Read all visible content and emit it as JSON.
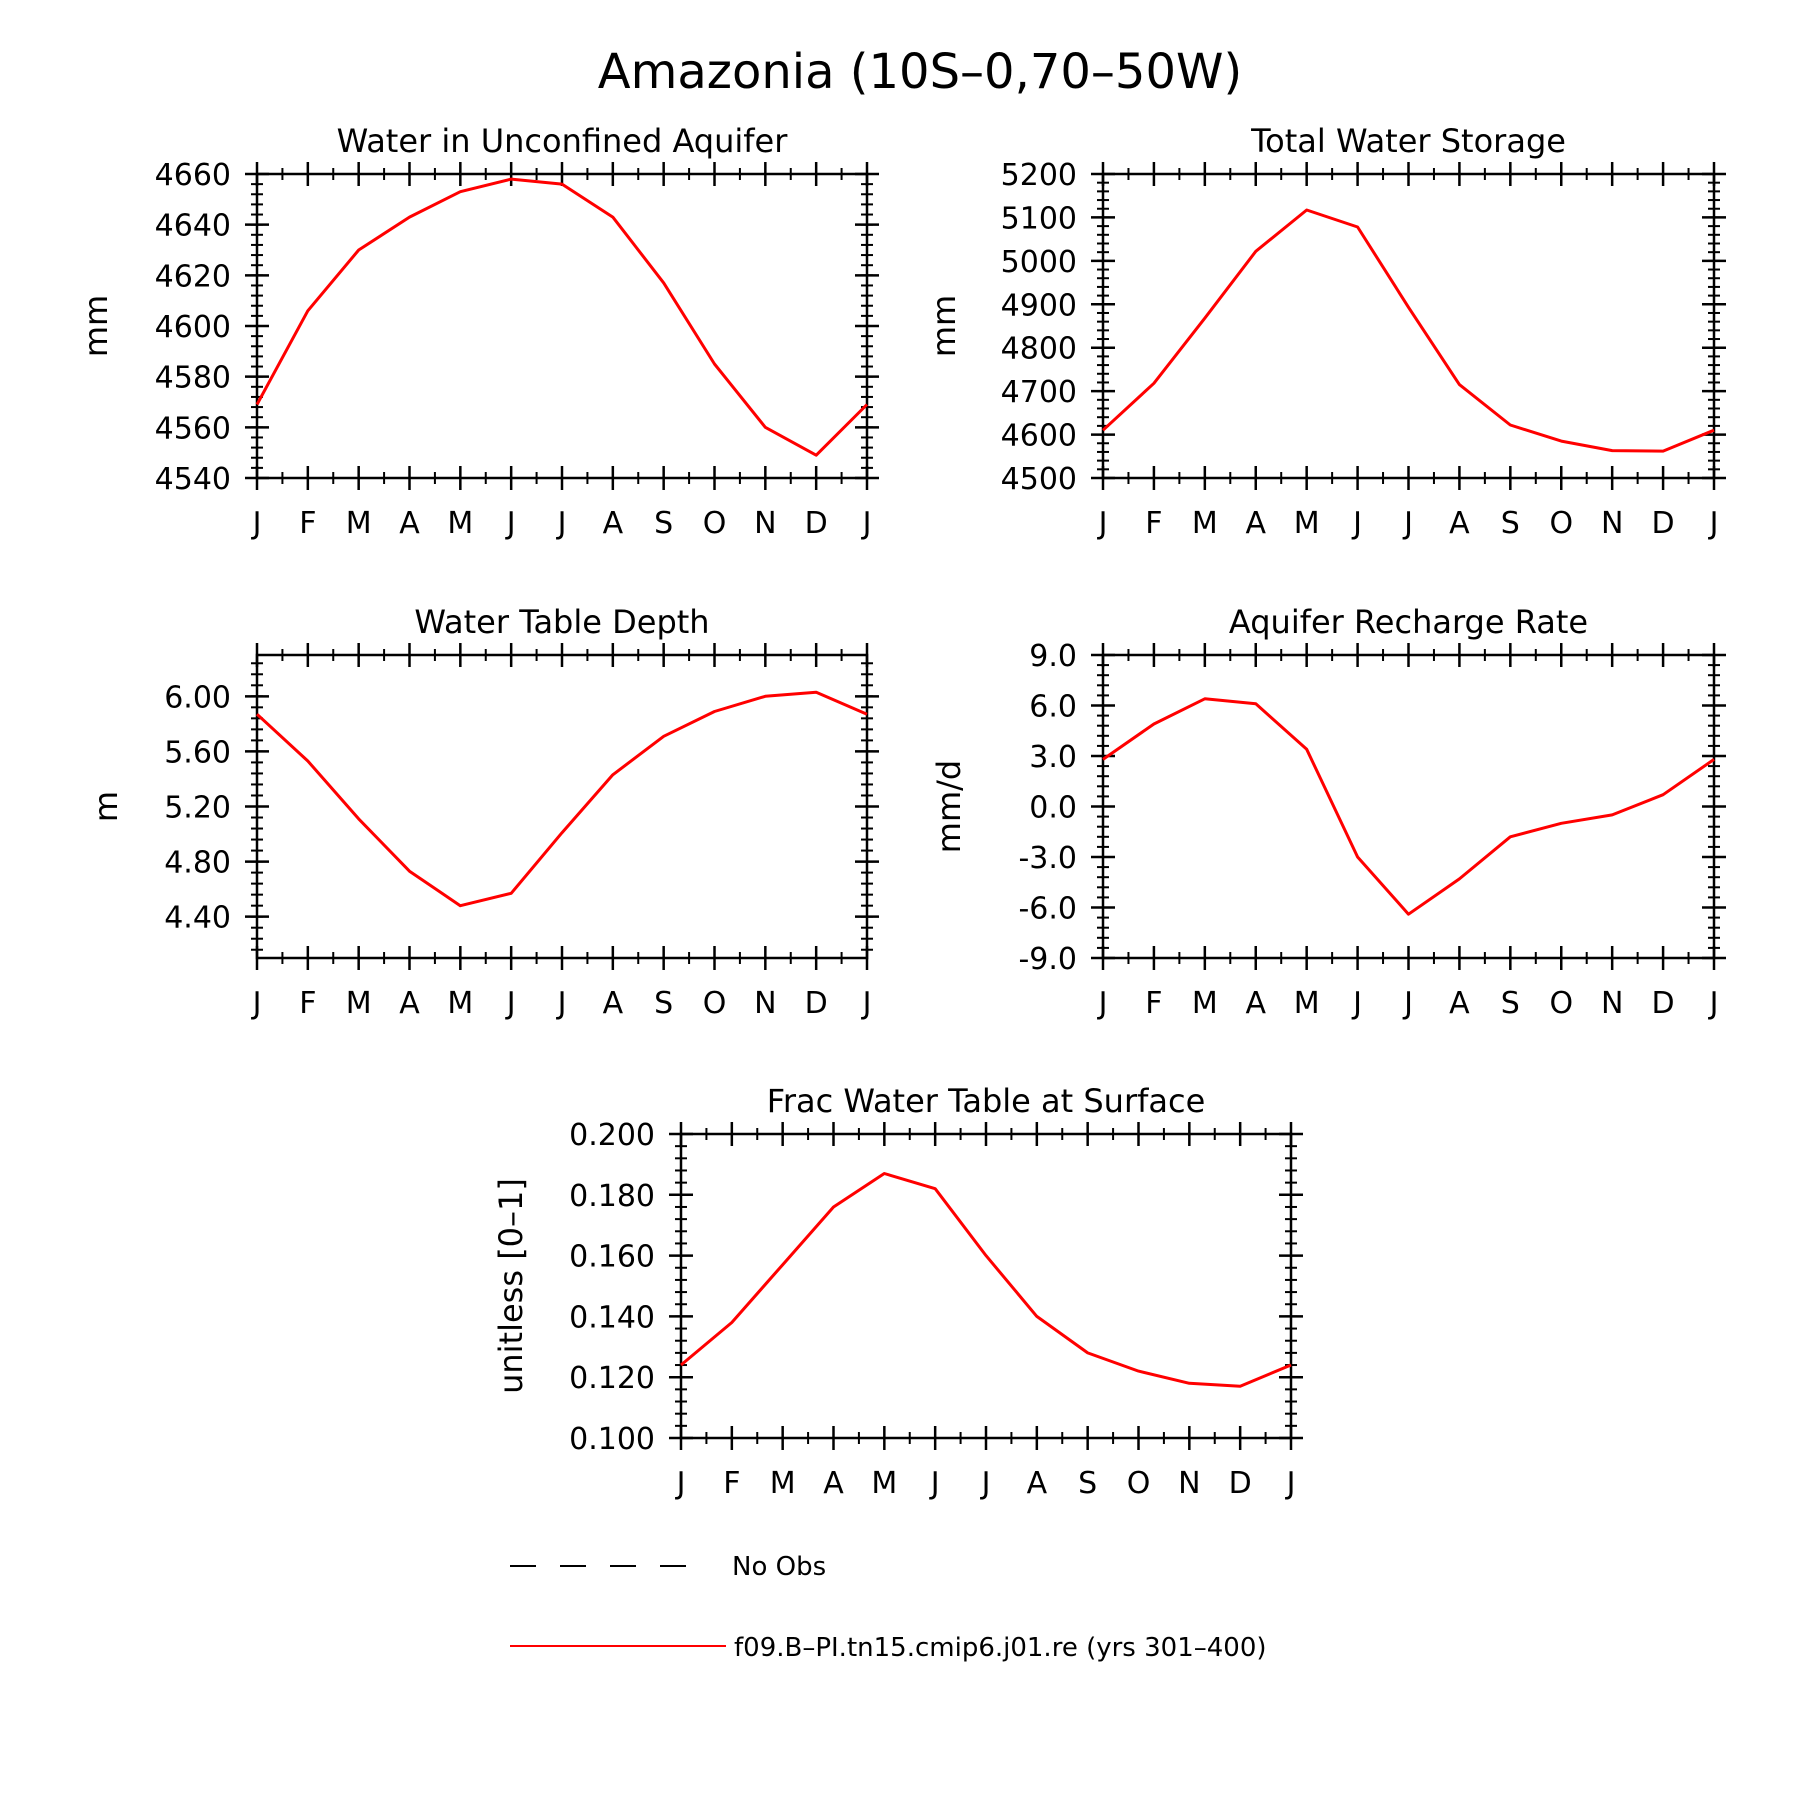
{
  "figure": {
    "title": "Amazonia (10S–0,70–50W)",
    "series_color": "#ff0000",
    "legend": [
      {
        "label": "No Obs",
        "style": "dashed",
        "color": "#000000"
      },
      {
        "label": "f09.B–PI.tn15.cmip6.j01.re (yrs 301–400)",
        "style": "solid",
        "color": "#ff0000"
      }
    ]
  },
  "chart_data": [
    {
      "type": "line",
      "title": "Water in Unconfined Aquifer",
      "ylabel": "mm",
      "xlabel": "",
      "categories": [
        "J",
        "F",
        "M",
        "A",
        "M",
        "J",
        "J",
        "A",
        "S",
        "O",
        "N",
        "D",
        "J"
      ],
      "ylim": [
        4540,
        4660
      ],
      "yticks": [
        4540,
        4560,
        4580,
        4600,
        4620,
        4640,
        4660
      ],
      "ytick_labels": [
        "4540",
        "4560",
        "4580",
        "4600",
        "4620",
        "4640",
        "4660"
      ],
      "series": [
        {
          "values": [
            4569,
            4606,
            4630,
            4643,
            4653,
            4658,
            4656,
            4643,
            4617,
            4585,
            4560,
            4549,
            4569
          ]
        }
      ]
    },
    {
      "type": "line",
      "title": "Total Water Storage",
      "ylabel": "mm",
      "xlabel": "",
      "categories": [
        "J",
        "F",
        "M",
        "A",
        "M",
        "J",
        "J",
        "A",
        "S",
        "O",
        "N",
        "D",
        "J"
      ],
      "ylim": [
        4500,
        5200
      ],
      "yticks": [
        4500,
        4600,
        4700,
        4800,
        4900,
        5000,
        5100,
        5200
      ],
      "ytick_labels": [
        "4500",
        "4600",
        "4700",
        "4800",
        "4900",
        "5000",
        "5100",
        "5200"
      ],
      "series": [
        {
          "values": [
            4610,
            4718,
            4868,
            5022,
            5117,
            5078,
            4893,
            4715,
            4622,
            4585,
            4563,
            4562,
            4610
          ]
        }
      ]
    },
    {
      "type": "line",
      "title": "Water Table Depth",
      "ylabel": "m",
      "xlabel": "",
      "categories": [
        "J",
        "F",
        "M",
        "A",
        "M",
        "J",
        "J",
        "A",
        "S",
        "O",
        "N",
        "D",
        "J"
      ],
      "ylim": [
        4.1,
        6.3
      ],
      "yticks": [
        4.4,
        4.8,
        5.2,
        5.6,
        6.0
      ],
      "ytick_labels": [
        "4.40",
        "4.80",
        "5.20",
        "5.60",
        "6.00"
      ],
      "series": [
        {
          "values": [
            5.87,
            5.53,
            5.11,
            4.73,
            4.48,
            4.57,
            5.01,
            5.43,
            5.71,
            5.89,
            6.0,
            6.03,
            5.87
          ]
        }
      ]
    },
    {
      "type": "line",
      "title": "Aquifer Recharge Rate",
      "ylabel": "mm/d",
      "xlabel": "",
      "categories": [
        "J",
        "F",
        "M",
        "A",
        "M",
        "J",
        "J",
        "A",
        "S",
        "O",
        "N",
        "D",
        "J"
      ],
      "ylim": [
        -9,
        9
      ],
      "yticks": [
        -9,
        -6,
        -3,
        0,
        3,
        6,
        9
      ],
      "ytick_labels": [
        "-9.0",
        "-6.0",
        "-3.0",
        "0.0",
        "3.0",
        "6.0",
        "9.0"
      ],
      "series": [
        {
          "values": [
            2.8,
            4.9,
            6.4,
            6.1,
            3.4,
            -3.0,
            -6.4,
            -4.3,
            -1.8,
            -1.0,
            -0.5,
            0.7,
            2.8
          ]
        }
      ]
    },
    {
      "type": "line",
      "title": "Frac Water Table at Surface",
      "ylabel": "unitless [0–1]",
      "xlabel": "",
      "categories": [
        "J",
        "F",
        "M",
        "A",
        "M",
        "J",
        "J",
        "A",
        "S",
        "O",
        "N",
        "D",
        "J"
      ],
      "ylim": [
        0.1,
        0.2
      ],
      "yticks": [
        0.1,
        0.12,
        0.14,
        0.16,
        0.18,
        0.2
      ],
      "ytick_labels": [
        "0.100",
        "0.120",
        "0.140",
        "0.160",
        "0.180",
        "0.200"
      ],
      "series": [
        {
          "values": [
            0.124,
            0.138,
            0.157,
            0.176,
            0.187,
            0.182,
            0.16,
            0.14,
            0.128,
            0.122,
            0.118,
            0.117,
            0.124
          ]
        }
      ]
    }
  ]
}
